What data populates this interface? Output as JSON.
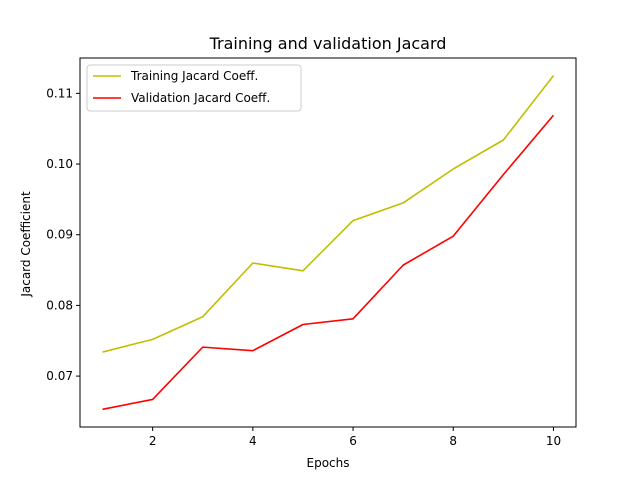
{
  "chart_data": {
    "type": "line",
    "title": "Training and validation Jacard",
    "xlabel": "Epochs",
    "ylabel": "Jacard Coefficient",
    "x": [
      1,
      2,
      3,
      4,
      5,
      6,
      7,
      8,
      9,
      10
    ],
    "xlim": [
      0.55,
      10.45
    ],
    "ylim": [
      0.0628,
      0.115
    ],
    "xticks": [
      2,
      4,
      6,
      8,
      10
    ],
    "yticks": [
      0.07,
      0.08,
      0.09,
      0.1,
      0.11
    ],
    "ytick_labels": [
      "0.07",
      "0.08",
      "0.09",
      "0.10",
      "0.11"
    ],
    "grid": false,
    "legend_position": "top-left",
    "series": [
      {
        "name": "Training Jacard Coeff.",
        "color": "#bfbf00",
        "values": [
          0.0734,
          0.0752,
          0.0784,
          0.086,
          0.0849,
          0.092,
          0.0945,
          0.0993,
          0.1034,
          0.1125
        ]
      },
      {
        "name": "Validation Jacard Coeff.",
        "color": "#ff0000",
        "values": [
          0.0653,
          0.0667,
          0.0741,
          0.0736,
          0.0773,
          0.0781,
          0.0857,
          0.0898,
          0.0985,
          0.1069
        ]
      }
    ]
  }
}
